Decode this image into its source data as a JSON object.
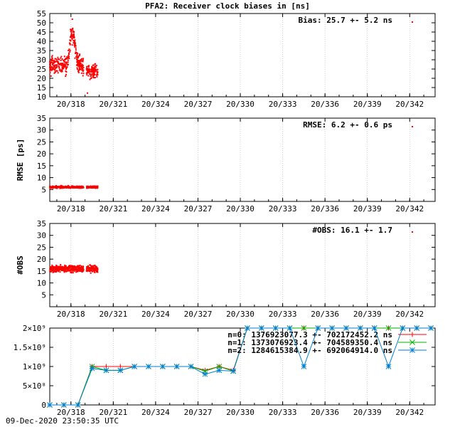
{
  "title": "PFA2: Receiver clock biases in [ns]",
  "timestamp": "09-Dec-2020 23:50:35 UTC",
  "x_tick_labels": [
    "20/318",
    "20/321",
    "20/324",
    "20/327",
    "20/330",
    "20/333",
    "20/336",
    "20/339",
    "20/342"
  ],
  "colors": {
    "red": "#ff0000",
    "green": "#00b000",
    "blue": "#0080d0",
    "axis": "#000000",
    "grid": "#b0b0b0"
  },
  "chart_data": [
    {
      "type": "scatter",
      "panel": "bias",
      "ylabel": "",
      "ylim": [
        10,
        55
      ],
      "yticks": [
        10,
        15,
        20,
        25,
        30,
        35,
        40,
        45,
        50,
        55
      ],
      "xlim": [
        316.5,
        343.8
      ],
      "legend": {
        "text": "Bias:  25.7 +-   5.2 ns",
        "placement": "top-right"
      },
      "series": [
        {
          "x_range": [
            316.5,
            318.9
          ],
          "mean": 27,
          "spread": 6,
          "peak": {
            "x": 318.1,
            "y": 48
          }
        },
        {
          "x_range": [
            319.1,
            319.9
          ],
          "mean": 24,
          "spread": 5,
          "min": 12
        }
      ]
    },
    {
      "type": "scatter",
      "panel": "rmse",
      "ylabel": "RMSE [ps]",
      "ylim": [
        0,
        35
      ],
      "yticks": [
        5,
        10,
        15,
        20,
        25,
        30,
        35
      ],
      "xlim": [
        316.5,
        343.8
      ],
      "legend": {
        "text": "RMSE:  6.2 +-   0.6 ps",
        "placement": "top-right"
      },
      "series": [
        {
          "x_range": [
            316.5,
            318.9
          ],
          "mean": 6,
          "spread": 0.6
        },
        {
          "x_range": [
            319.1,
            319.9
          ],
          "mean": 6,
          "spread": 0.6
        }
      ]
    },
    {
      "type": "scatter",
      "panel": "obs",
      "ylabel": "#OBS",
      "ylim": [
        0,
        35
      ],
      "yticks": [
        5,
        10,
        15,
        20,
        25,
        30,
        35
      ],
      "xlim": [
        316.5,
        343.8
      ],
      "legend": {
        "text": "#OBS:  16.1 +-   1.7",
        "placement": "top-right"
      },
      "series": [
        {
          "x_range": [
            316.5,
            318.9
          ],
          "mean": 16,
          "spread": 2
        },
        {
          "x_range": [
            319.1,
            319.9
          ],
          "mean": 16,
          "spread": 2
        }
      ]
    },
    {
      "type": "line",
      "panel": "counts",
      "ylabel": "",
      "ylim": [
        0,
        2000000000
      ],
      "yticks": [
        0,
        500000000,
        1000000000,
        1500000000,
        2000000000
      ],
      "ytick_labels": [
        "0",
        "5×10⁸",
        "1×10⁹",
        "1.5×10⁹",
        "2×10⁹"
      ],
      "xlim": [
        316.5,
        343.8
      ],
      "x": [
        316.5,
        317.5,
        318.5,
        319.5,
        320.5,
        321.5,
        322.5,
        323.5,
        324.5,
        325.5,
        326.5,
        327.5,
        328.5,
        329.5,
        330.5,
        331.5,
        332.5,
        333.5,
        334.5,
        335.5,
        336.5,
        337.5,
        338.5,
        339.5,
        340.5,
        341.5,
        342.5,
        343.5
      ],
      "series": [
        {
          "name": "n=0: 1376923077.3 +- 702172452.2 ns",
          "marker": "+",
          "values": [
            0,
            0,
            0,
            1000000000,
            1000000000,
            1000000000,
            1000000000,
            1000000000,
            1000000000,
            1000000000,
            1000000000,
            900000000,
            1000000000,
            900000000,
            2000000000,
            2000000000,
            2000000000,
            2000000000,
            2000000000,
            2000000000,
            2000000000,
            2000000000,
            2000000000,
            2000000000,
            2000000000,
            2000000000,
            2000000000,
            2000000000
          ]
        },
        {
          "name": "n=1: 1373076923.4 +- 704589350.4 ns",
          "marker": "x",
          "values": [
            0,
            0,
            0,
            1000000000,
            900000000,
            900000000,
            1000000000,
            1000000000,
            1000000000,
            1000000000,
            1000000000,
            880000000,
            1000000000,
            880000000,
            2000000000,
            2000000000,
            2000000000,
            2000000000,
            2000000000,
            2000000000,
            2000000000,
            2000000000,
            2000000000,
            2000000000,
            2000000000,
            2000000000,
            2000000000,
            2000000000
          ]
        },
        {
          "name": "n=2: 1284615384.9 +- 692064914.0 ns",
          "marker": "*",
          "values": [
            0,
            0,
            0,
            950000000,
            900000000,
            900000000,
            1000000000,
            1000000000,
            1000000000,
            1000000000,
            1000000000,
            800000000,
            900000000,
            880000000,
            2000000000,
            2000000000,
            2000000000,
            2000000000,
            1000000000,
            2000000000,
            2000000000,
            2000000000,
            2000000000,
            2000000000,
            1000000000,
            2000000000,
            2000000000,
            2000000000
          ]
        }
      ]
    }
  ]
}
